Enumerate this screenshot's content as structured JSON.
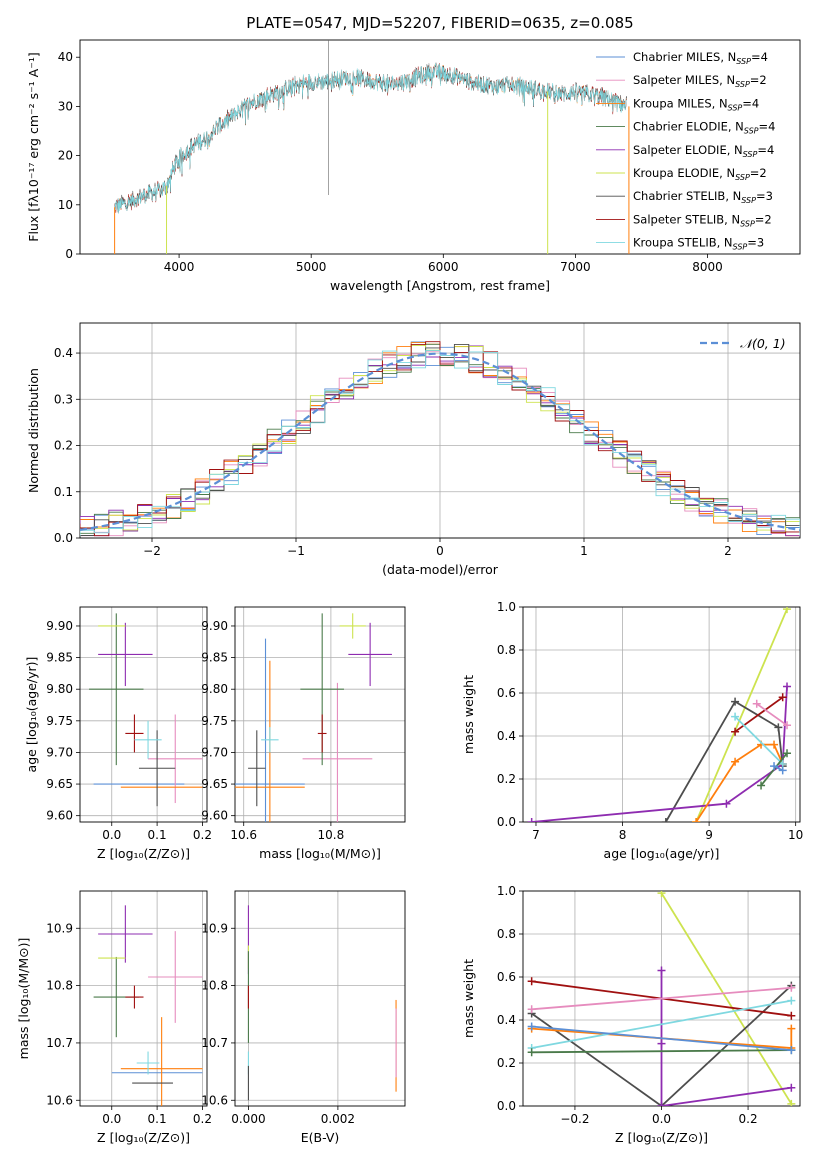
{
  "title": "PLATE=0547, MJD=52207, FIBERID=0635, z=0.085",
  "colors": {
    "chabrier_miles": "#5b8fd6",
    "salpeter_miles": "#e68cbe",
    "kroupa_miles": "#ff7f0e",
    "chabrier_elodie": "#4a7a4a",
    "salpeter_elodie": "#8e2cb0",
    "kroupa_elodie": "#cde34f",
    "chabrier_stelib": "#4d4d4d",
    "salpeter_stelib": "#a01010",
    "kroupa_stelib": "#7fd8e0",
    "normal_curve": "#5b8fd6"
  },
  "chart_data": [
    {
      "type": "line",
      "name": "spectrum",
      "xlabel": "wavelength [Angstrom, rest frame]",
      "ylabel": "Flux [fλ10⁻¹⁷ erg cm⁻² s⁻¹ A⁻¹]",
      "xlim": [
        3250,
        8700
      ],
      "ylim": [
        0,
        43.5
      ],
      "xticks": [
        "4000",
        "5000",
        "6000",
        "7000",
        "8000"
      ],
      "yticks": [
        "0",
        "10",
        "20",
        "30",
        "40"
      ],
      "legend_position": "top-right",
      "series": [
        {
          "label": "Chabrier MILES",
          "nssp": "4"
        },
        {
          "label": "Salpeter MILES",
          "nssp": "2"
        },
        {
          "label": "Kroupa MILES",
          "nssp": "4"
        },
        {
          "label": "Chabrier ELODIE",
          "nssp": "4"
        },
        {
          "label": "Salpeter ELODIE",
          "nssp": "4"
        },
        {
          "label": "Kroupa ELODIE",
          "nssp": "2"
        },
        {
          "label": "Chabrier STELIB",
          "nssp": "3"
        },
        {
          "label": "Salpeter STELIB",
          "nssp": "2"
        },
        {
          "label": "Kroupa STELIB",
          "nssp": "3"
        }
      ],
      "nssp_prefix": "N",
      "nssp_sub": "SSP",
      "continuum": {
        "x": [
          3510,
          3600,
          3700,
          3800,
          3900,
          3950,
          4000,
          4100,
          4200,
          4300,
          4400,
          4500,
          4600,
          4700,
          4800,
          4900,
          5000,
          5100,
          5200,
          5300,
          5400,
          5500,
          5600,
          5700,
          5800,
          5900,
          6000,
          6100,
          6200,
          6300,
          6400,
          6500,
          6600,
          6700,
          6800,
          6900,
          7000,
          7100,
          7200,
          7300,
          7400
        ],
        "y": [
          9.5,
          10.5,
          11.5,
          12.5,
          13.5,
          17,
          19.5,
          22,
          23.5,
          26,
          28,
          30,
          31.5,
          32.5,
          33.5,
          34.5,
          35,
          35,
          35.5,
          36,
          35.5,
          35,
          34.5,
          35,
          36,
          37,
          37,
          36,
          35,
          34.5,
          34,
          34.5,
          34,
          33.5,
          33,
          32.5,
          33,
          32.5,
          32,
          31,
          30
        ]
      }
    },
    {
      "type": "line",
      "name": "residual-distribution",
      "xlabel": "(data-model)/error",
      "ylabel": "Normed distribution",
      "xlim": [
        -2.5,
        2.5
      ],
      "ylim": [
        0,
        0.465
      ],
      "xticks": [
        "−2",
        "−1",
        "0",
        "1",
        "2"
      ],
      "yticks": [
        "0.0",
        "0.1",
        "0.2",
        "0.3",
        "0.4"
      ],
      "legend": "𝒩(0, 1)",
      "legend_position": "top-right",
      "bin_width": 0.1
    },
    {
      "type": "scatter",
      "name": "age-vs-metallicity",
      "xlabel": "Z [log₁₀(Z/Z⊙)]",
      "ylabel": "age  [log₁₀(age/yr)]",
      "xlim": [
        -0.07,
        0.21
      ],
      "ylim": [
        9.59,
        9.93
      ],
      "xticks": [
        "0.0",
        "0.1",
        "0.2"
      ],
      "yticks": [
        "9.60",
        "9.65",
        "9.70",
        "9.75",
        "9.80",
        "9.85",
        "9.90"
      ],
      "points": [
        {
          "model": "chabrier_miles",
          "x": 0.06,
          "xerr": 0.1,
          "y": 9.65,
          "yerr": 0.0
        },
        {
          "model": "salpeter_miles",
          "x": 0.14,
          "xerr": 0.06,
          "y": 9.69,
          "yerr": 0.07
        },
        {
          "model": "kroupa_miles",
          "x": 0.11,
          "xerr": 0.09,
          "y": 9.645,
          "yerr": 0.0
        },
        {
          "model": "chabrier_elodie",
          "x": 0.01,
          "xerr": 0.06,
          "y": 9.8,
          "yerr": 0.12
        },
        {
          "model": "salpeter_elodie",
          "x": 0.03,
          "xerr": 0.06,
          "y": 9.855,
          "yerr": 0.05
        },
        {
          "model": "kroupa_elodie",
          "x": 0.0,
          "xerr": 0.03,
          "y": 9.9,
          "yerr": 0.0
        },
        {
          "model": "chabrier_stelib",
          "x": 0.1,
          "xerr": 0.04,
          "y": 9.675,
          "yerr": 0.06
        },
        {
          "model": "salpeter_stelib",
          "x": 0.05,
          "xerr": 0.02,
          "y": 9.73,
          "yerr": 0.03
        },
        {
          "model": "kroupa_stelib",
          "x": 0.08,
          "xerr": 0.03,
          "y": 9.72,
          "yerr": 0.03
        }
      ]
    },
    {
      "type": "scatter",
      "name": "age-vs-mass",
      "xlabel": "mass [log₁₀(M/M⊙)]",
      "ylabel": "",
      "xlim": [
        10.58,
        10.97
      ],
      "ylim": [
        9.59,
        9.93
      ],
      "xticks": [
        "10.6",
        "10.8"
      ],
      "yticks": [
        "9.60",
        "9.65",
        "9.70",
        "9.75",
        "9.80",
        "9.85",
        "9.90"
      ],
      "points": [
        {
          "model": "chabrier_miles",
          "x": 10.65,
          "xerr": 0.09,
          "y": 9.65,
          "yerr": 0.23
        },
        {
          "model": "salpeter_miles",
          "x": 10.815,
          "xerr": 0.08,
          "y": 9.69,
          "yerr": 0.12
        },
        {
          "model": "kroupa_miles",
          "x": 10.66,
          "xerr": 0.08,
          "y": 9.645,
          "yerr": 0.2
        },
        {
          "model": "chabrier_elodie",
          "x": 10.78,
          "xerr": 0.05,
          "y": 9.8,
          "yerr": 0.12
        },
        {
          "model": "salpeter_elodie",
          "x": 10.89,
          "xerr": 0.05,
          "y": 9.855,
          "yerr": 0.05
        },
        {
          "model": "kroupa_elodie",
          "x": 10.85,
          "xerr": 0.03,
          "y": 9.9,
          "yerr": 0.02
        },
        {
          "model": "chabrier_stelib",
          "x": 10.63,
          "xerr": 0.02,
          "y": 9.675,
          "yerr": 0.06
        },
        {
          "model": "salpeter_stelib",
          "x": 10.78,
          "xerr": 0.01,
          "y": 9.73,
          "yerr": 0.03
        },
        {
          "model": "kroupa_stelib",
          "x": 10.66,
          "xerr": 0.02,
          "y": 9.72,
          "yerr": 0.02
        }
      ]
    },
    {
      "type": "line",
      "name": "mass-weight-vs-age",
      "xlabel": "age  [log₁₀(age/yr)]",
      "ylabel": "mass weight",
      "xlim": [
        6.85,
        10.05
      ],
      "ylim": [
        0,
        1
      ],
      "xticks": [
        "7",
        "8",
        "9",
        "10"
      ],
      "yticks": [
        "0.0",
        "0.2",
        "0.4",
        "0.6",
        "0.8",
        "1.0"
      ],
      "series": [
        {
          "model": "kroupa_elodie",
          "x": [
            8.85,
            9.9
          ],
          "y": [
            0.0,
            0.99
          ]
        },
        {
          "model": "chabrier_stelib",
          "x": [
            8.5,
            9.3,
            9.8,
            9.85
          ],
          "y": [
            0.0,
            0.56,
            0.44,
            0.26
          ]
        },
        {
          "model": "salpeter_elodie",
          "x": [
            6.95,
            9.2,
            9.85,
            9.9
          ],
          "y": [
            0.0,
            0.085,
            0.27,
            0.63
          ]
        },
        {
          "model": "kroupa_miles",
          "x": [
            8.85,
            9.3,
            9.6,
            9.75,
            9.85
          ],
          "y": [
            0.0,
            0.28,
            0.36,
            0.36,
            0.27
          ]
        },
        {
          "model": "salpeter_stelib",
          "x": [
            9.3,
            9.85
          ],
          "y": [
            0.42,
            0.58
          ]
        },
        {
          "model": "kroupa_stelib",
          "x": [
            9.3,
            9.85
          ],
          "y": [
            0.49,
            0.27
          ]
        },
        {
          "model": "salpeter_miles",
          "x": [
            9.55,
            9.9
          ],
          "y": [
            0.55,
            0.45
          ]
        },
        {
          "model": "chabrier_elodie",
          "x": [
            9.6,
            9.9
          ],
          "y": [
            0.17,
            0.32
          ]
        },
        {
          "model": "chabrier_miles",
          "x": [
            9.75,
            9.85
          ],
          "y": [
            0.26,
            0.24
          ]
        }
      ]
    },
    {
      "type": "scatter",
      "name": "mass-vs-metallicity",
      "xlabel": "Z [log₁₀(Z/Z⊙)]",
      "ylabel": "mass [log₁₀(M/M⊙)]",
      "xlim": [
        -0.07,
        0.21
      ],
      "ylim": [
        10.59,
        10.965
      ],
      "xticks": [
        "0.0",
        "0.1",
        "0.2"
      ],
      "yticks": [
        "10.6",
        "10.7",
        "10.8",
        "10.9"
      ],
      "points": [
        {
          "model": "chabrier_miles",
          "x": 0.1,
          "xerr": 0.1,
          "y": 10.648,
          "yerr": 0.0
        },
        {
          "model": "salpeter_miles",
          "x": 0.14,
          "xerr": 0.06,
          "y": 10.815,
          "yerr": 0.08
        },
        {
          "model": "kroupa_miles",
          "x": 0.11,
          "xerr": 0.09,
          "y": 10.655,
          "yerr": 0.09
        },
        {
          "model": "chabrier_elodie",
          "x": 0.01,
          "xerr": 0.05,
          "y": 10.78,
          "yerr": 0.07
        },
        {
          "model": "salpeter_elodie",
          "x": 0.03,
          "xerr": 0.06,
          "y": 10.89,
          "yerr": 0.05
        },
        {
          "model": "kroupa_elodie",
          "x": 0.0,
          "xerr": 0.03,
          "y": 10.848,
          "yerr": 0.0
        },
        {
          "model": "chabrier_stelib",
          "x": 0.09,
          "xerr": 0.045,
          "y": 10.63,
          "yerr": 0.0
        },
        {
          "model": "salpeter_stelib",
          "x": 0.05,
          "xerr": 0.02,
          "y": 10.78,
          "yerr": 0.02
        },
        {
          "model": "kroupa_stelib",
          "x": 0.08,
          "xerr": 0.025,
          "y": 10.665,
          "yerr": 0.02
        }
      ]
    },
    {
      "type": "scatter",
      "name": "mass-vs-extinction",
      "xlabel": "E(B-V)",
      "ylabel": "",
      "xlim": [
        -0.0003,
        0.0035
      ],
      "ylim": [
        10.59,
        10.965
      ],
      "xticks": [
        "0.000",
        "0.002"
      ],
      "yticks": [
        "10.6",
        "10.7",
        "10.8",
        "10.9"
      ],
      "points": [
        {
          "model": "salpeter_elodie",
          "x": 0.0,
          "xerr": 0.0,
          "y": 10.88,
          "yerr": 0.06
        },
        {
          "model": "kroupa_elodie",
          "x": 0.0,
          "xerr": 0.0,
          "y": 10.85,
          "yerr": 0.02
        },
        {
          "model": "chabrier_elodie",
          "x": 0.0,
          "xerr": 0.0,
          "y": 10.78,
          "yerr": 0.08
        },
        {
          "model": "salpeter_stelib",
          "x": 0.0,
          "xerr": 0.0,
          "y": 10.78,
          "yerr": 0.02
        },
        {
          "model": "kroupa_stelib",
          "x": 0.0,
          "xerr": 0.0,
          "y": 10.665,
          "yerr": 0.02
        },
        {
          "model": "chabrier_stelib",
          "x": 0.0,
          "xerr": 0.0,
          "y": 10.63,
          "yerr": 0.03
        },
        {
          "model": "kroupa_miles",
          "x": 0.0033,
          "xerr": 0.0,
          "y": 10.695,
          "yerr": 0.08
        },
        {
          "model": "salpeter_miles",
          "x": 0.0033,
          "xerr": 0.0,
          "y": 10.7,
          "yerr": 0.06
        }
      ]
    },
    {
      "type": "line",
      "name": "mass-weight-vs-metallicity",
      "xlabel": "Z [log₁₀(Z/Z⊙)]",
      "ylabel": "mass weight",
      "xlim": [
        -0.32,
        0.32
      ],
      "ylim": [
        0,
        1
      ],
      "xticks": [
        "−0.2",
        "0.0",
        "0.2"
      ],
      "yticks": [
        "0.0",
        "0.2",
        "0.4",
        "0.6",
        "0.8",
        "1.0"
      ],
      "series": [
        {
          "model": "kroupa_elodie",
          "x": [
            0.0,
            0.3
          ],
          "y": [
            0.99,
            0.01
          ]
        },
        {
          "model": "chabrier_stelib",
          "x": [
            -0.3,
            0.0,
            0.3
          ],
          "y": [
            0.43,
            0.0,
            0.56
          ]
        },
        {
          "model": "salpeter_elodie",
          "x": [
            0.0,
            0.0,
            0.3
          ],
          "y": [
            0.63,
            0.0,
            0.085
          ]
        },
        {
          "model": "kroupa_miles",
          "x": [
            -0.3,
            0.3,
            0.3
          ],
          "y": [
            0.36,
            0.27,
            0.36
          ]
        },
        {
          "model": "salpeter_stelib",
          "x": [
            -0.3,
            0.3
          ],
          "y": [
            0.58,
            0.42
          ]
        },
        {
          "model": "kroupa_stelib",
          "x": [
            -0.3,
            0.3
          ],
          "y": [
            0.27,
            0.49
          ]
        },
        {
          "model": "salpeter_miles",
          "x": [
            -0.3,
            0.3
          ],
          "y": [
            0.45,
            0.55
          ]
        },
        {
          "model": "chabrier_elodie",
          "x": [
            -0.3,
            0.3
          ],
          "y": [
            0.25,
            0.26
          ]
        },
        {
          "model": "chabrier_miles",
          "x": [
            -0.3,
            0.3
          ],
          "y": [
            0.37,
            0.26
          ]
        },
        {
          "model": "salpeter_elodie",
          "x": [
            0.0
          ],
          "y": [
            0.29
          ]
        }
      ]
    }
  ]
}
